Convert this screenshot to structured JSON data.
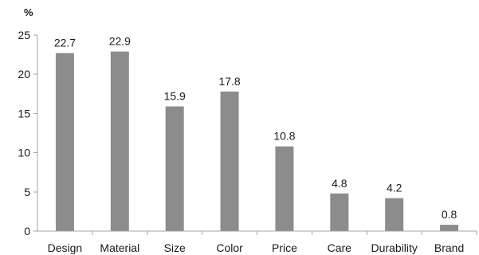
{
  "chart_data": {
    "type": "bar",
    "title": "",
    "xlabel": "",
    "ylabel": "%",
    "categories": [
      "Design",
      "Material",
      "Size",
      "Color",
      "Price",
      "Care",
      "Durability",
      "Brand"
    ],
    "series": [
      {
        "values": [
          22.7,
          22.9,
          15.9,
          17.8,
          10.8,
          4.8,
          4.2,
          0.8
        ],
        "data_labels": [
          "22.7",
          "22.9",
          "15.9",
          "17.8",
          "10.8",
          "4.8",
          "4.2",
          "0.8"
        ],
        "color": "#8c8c8c"
      }
    ],
    "ylim": [
      0,
      25
    ],
    "yticks": [
      0,
      5,
      10,
      15,
      20,
      25
    ],
    "ytick_labels": [
      "0",
      "5",
      "10",
      "15",
      "20",
      "25"
    ],
    "grid": false,
    "legend": "none"
  }
}
